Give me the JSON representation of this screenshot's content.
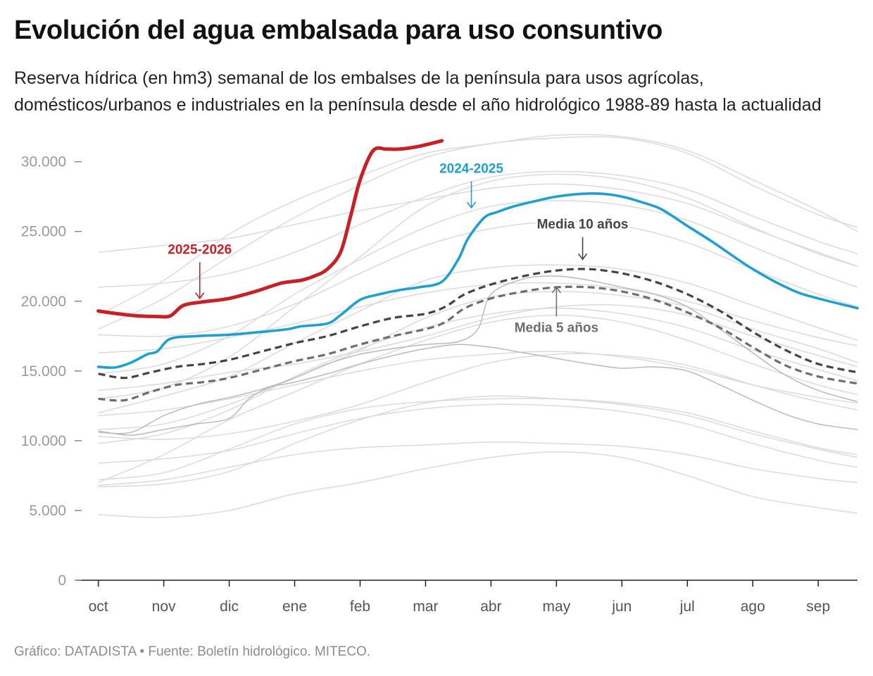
{
  "title": "Evolución del agua embalsada para uso consuntivo",
  "subtitle": "Reserva hídrica (en hm3) semanal de los embalses de la península para usos agrícolas, domésticos/urbanos e industriales en la península desde el año hidrológico 1988-89 hasta la actualidad",
  "footer": "Gráfico: DATADISTA • Fuente: Boletín hidrológico. MITECO.",
  "chart_data": {
    "type": "line",
    "xlabel": "",
    "ylabel": "",
    "ylim": [
      0,
      32000
    ],
    "xlim": [
      -0.05,
      11.6
    ],
    "x_ticks": [
      {
        "pos": 0,
        "label": "oct"
      },
      {
        "pos": 1,
        "label": "nov"
      },
      {
        "pos": 2,
        "label": "dic"
      },
      {
        "pos": 3,
        "label": "ene"
      },
      {
        "pos": 4,
        "label": "feb"
      },
      {
        "pos": 5,
        "label": "mar"
      },
      {
        "pos": 6,
        "label": "abr"
      },
      {
        "pos": 7,
        "label": "may"
      },
      {
        "pos": 8,
        "label": "jun"
      },
      {
        "pos": 9,
        "label": "jul"
      },
      {
        "pos": 10,
        "label": "ago"
      },
      {
        "pos": 11,
        "label": "sep"
      }
    ],
    "y_ticks": [
      {
        "value": 0,
        "label": "0"
      },
      {
        "value": 5000,
        "label": "5.000"
      },
      {
        "value": 10000,
        "label": "10.000"
      },
      {
        "value": 15000,
        "label": "15.000"
      },
      {
        "value": 20000,
        "label": "20.000"
      },
      {
        "value": 25000,
        "label": "25.000"
      },
      {
        "value": 30000,
        "label": "30.000"
      }
    ],
    "grid": false,
    "colors": {
      "highlight_2025_2026": "#c62126",
      "highlight_2024_2025": "#1fa0cf",
      "media_10": "#444444",
      "media_5": "#6e6e6e",
      "background_years": "#dcdcdc",
      "background_years_dark": "#bdbdbd"
    },
    "background_series": [
      {
        "x": [
          0,
          1,
          2,
          3,
          4,
          5,
          6,
          7,
          8,
          9,
          10,
          11,
          11.6
        ],
        "y": [
          4700,
          4500,
          5000,
          6200,
          7000,
          8000,
          8800,
          9200,
          8800,
          7500,
          6000,
          5200,
          4800
        ]
      },
      {
        "x": [
          0,
          1,
          2,
          3,
          4,
          5,
          6,
          7,
          8,
          9,
          10,
          11,
          11.6
        ],
        "y": [
          6700,
          6900,
          7800,
          9800,
          11500,
          12700,
          13200,
          13000,
          12600,
          11800,
          10500,
          9400,
          8800
        ]
      },
      {
        "x": [
          0,
          1,
          2,
          3,
          4,
          5,
          6,
          7,
          8,
          9,
          10,
          11,
          11.6
        ],
        "y": [
          7000,
          9000,
          11500,
          13500,
          15500,
          17200,
          18500,
          19000,
          18500,
          17200,
          15500,
          14000,
          13300
        ]
      },
      {
        "x": [
          0,
          1,
          2,
          3,
          4,
          5,
          6,
          7,
          8,
          9,
          10,
          11,
          11.6
        ],
        "y": [
          6800,
          7200,
          8100,
          9000,
          9500,
          9700,
          9900,
          9800,
          9600,
          9000,
          8000,
          7300,
          7000
        ]
      },
      {
        "x": [
          0,
          1,
          2,
          3,
          4,
          5,
          6,
          7,
          8,
          9,
          10,
          11,
          11.6
        ],
        "y": [
          10800,
          11200,
          12600,
          14500,
          16500,
          18800,
          20300,
          20700,
          20400,
          19600,
          18000,
          16600,
          15600
        ]
      },
      {
        "x": [
          0,
          1,
          2,
          3,
          4,
          5,
          6,
          7,
          8,
          9,
          10,
          11,
          11.6
        ],
        "y": [
          12000,
          13200,
          14600,
          17000,
          19300,
          21500,
          22400,
          22600,
          22300,
          21300,
          19700,
          18100,
          17200
        ]
      },
      {
        "x": [
          0,
          1,
          2,
          3,
          4,
          5,
          6,
          7,
          8,
          9,
          10,
          11,
          11.6
        ],
        "y": [
          13000,
          13800,
          16000,
          19600,
          23200,
          26800,
          28600,
          29100,
          28700,
          27400,
          25300,
          23400,
          22500
        ]
      },
      {
        "x": [
          0,
          1,
          2,
          3,
          4,
          5,
          6,
          7,
          8,
          9,
          10,
          11,
          11.6
        ],
        "y": [
          18000,
          20200,
          23200,
          26000,
          28300,
          30300,
          31300,
          31700,
          31700,
          30600,
          28300,
          26200,
          25300
        ]
      },
      {
        "x": [
          0,
          1,
          2,
          3,
          4,
          5,
          6,
          7,
          8,
          9,
          10,
          11,
          11.6
        ],
        "y": [
          19000,
          21500,
          24800,
          27200,
          29000,
          30600,
          31300,
          31900,
          31800,
          30800,
          28700,
          26500,
          25000
        ]
      },
      {
        "x": [
          0,
          1,
          2,
          3,
          4,
          5,
          6,
          7,
          8,
          9,
          10,
          11,
          11.6
        ],
        "y": [
          16300,
          16600,
          17400,
          18400,
          19600,
          20600,
          21200,
          21300,
          20900,
          20000,
          18600,
          17400,
          16800
        ]
      },
      {
        "x": [
          0,
          1,
          2,
          3,
          4,
          5,
          6,
          7,
          8,
          9,
          10,
          11,
          11.6
        ],
        "y": [
          11800,
          12200,
          13000,
          14000,
          15000,
          15800,
          16200,
          16400,
          16000,
          15200,
          14000,
          13100,
          12700
        ]
      },
      {
        "x": [
          0,
          1,
          2,
          3,
          4,
          5,
          6,
          7,
          8,
          9,
          10,
          11,
          11.6
        ],
        "y": [
          7200,
          7700,
          9400,
          11200,
          12300,
          12800,
          13000,
          13000,
          12700,
          12000,
          10700,
          9500,
          9000
        ]
      },
      {
        "x": [
          0,
          1,
          2,
          3,
          4,
          5,
          6,
          7,
          8,
          9,
          10,
          11,
          11.6
        ],
        "y": [
          23500,
          24000,
          24500,
          25500,
          26500,
          27300,
          28100,
          28400,
          28000,
          27000,
          25200,
          23500,
          22500
        ]
      },
      {
        "x": [
          0,
          1,
          2,
          3,
          4,
          5,
          6,
          7,
          8,
          9,
          10,
          11,
          11.6
        ],
        "y": [
          14800,
          15500,
          17500,
          20500,
          23000,
          25300,
          26800,
          27200,
          26900,
          25800,
          23900,
          22000,
          21000
        ]
      },
      {
        "x": [
          0,
          1,
          2,
          3,
          4,
          5,
          6,
          7,
          8,
          9,
          10,
          11,
          11.6
        ],
        "y": [
          9800,
          10500,
          12200,
          14600,
          16600,
          18100,
          19100,
          19500,
          19100,
          18100,
          16500,
          15100,
          14300
        ]
      },
      {
        "x": [
          0,
          1,
          2,
          3,
          4,
          5,
          6,
          7,
          8,
          9,
          10,
          11,
          11.6
        ],
        "y": [
          17600,
          17500,
          18200,
          19800,
          22000,
          24000,
          25200,
          25700,
          25400,
          24200,
          22300,
          20500,
          19600
        ]
      },
      {
        "x": [
          0,
          1,
          2,
          3,
          4,
          5,
          6,
          7,
          8,
          9,
          10,
          11,
          11.6
        ],
        "y": [
          21000,
          21300,
          22000,
          23500,
          25500,
          27500,
          28900,
          29300,
          29000,
          28000,
          26100,
          24300,
          23400
        ]
      },
      {
        "x": [
          0,
          1,
          2,
          3,
          4,
          5,
          6,
          7,
          8,
          9,
          10,
          11,
          11.6
        ],
        "y": [
          13600,
          14100,
          14900,
          15500,
          16400,
          17500,
          18800,
          19600,
          19700,
          19000,
          17500,
          16100,
          15300
        ]
      },
      {
        "x": [
          0,
          1,
          2,
          3,
          4,
          5,
          6,
          7,
          8,
          9,
          10,
          11,
          11.6
        ],
        "y": [
          8400,
          8700,
          9300,
          10500,
          11600,
          12300,
          12600,
          12500,
          12100,
          11200,
          9800,
          8600,
          8100
        ]
      },
      {
        "x": [
          0,
          1,
          2,
          3,
          4,
          5,
          6,
          7,
          8,
          9,
          10,
          11,
          11.6
        ],
        "y": [
          10300,
          10100,
          10500,
          11400,
          12600,
          14200,
          15600,
          16200,
          16100,
          15400,
          14000,
          12800,
          12200
        ]
      }
    ],
    "dark_background_series": [
      {
        "x": [
          0,
          0.5,
          1,
          1.5,
          2,
          2.3,
          2.6,
          3,
          3.5,
          4,
          4.5,
          5,
          5.5,
          6,
          6.5,
          7,
          7.5,
          8,
          8.5,
          9,
          9.5,
          10,
          10.5,
          11,
          11.6
        ],
        "y": [
          10700,
          10400,
          10800,
          11200,
          11600,
          13000,
          13800,
          14200,
          14800,
          15500,
          16100,
          16600,
          16900,
          16700,
          16300,
          15900,
          15500,
          15200,
          15300,
          15000,
          14000,
          12900,
          11900,
          11200,
          10800
        ]
      },
      {
        "x": [
          0,
          0.5,
          1,
          1.5,
          2,
          2.5,
          3,
          3.5,
          4,
          4.5,
          5,
          5.5,
          5.8,
          6,
          6.5,
          7,
          7.5,
          8,
          8.5,
          9,
          9.5,
          10,
          10.5,
          11,
          11.6
        ],
        "y": [
          10600,
          10600,
          11800,
          12600,
          13100,
          13700,
          14500,
          15500,
          16200,
          16600,
          16900,
          17100,
          18000,
          20500,
          21600,
          21800,
          21500,
          21000,
          20500,
          19600,
          18000,
          16300,
          14700,
          13600,
          12800
        ]
      }
    ],
    "series": [
      {
        "name": "2025-2026",
        "color": "#c62126",
        "x": [
          0,
          0.3,
          0.6,
          0.9,
          1.1,
          1.3,
          1.6,
          2,
          2.4,
          2.8,
          3.1,
          3.3,
          3.5,
          3.7,
          3.85,
          4,
          4.2,
          4.4,
          4.6,
          4.9,
          5.25
        ],
        "y": [
          19300,
          19100,
          18950,
          18900,
          18950,
          19700,
          19950,
          20200,
          20700,
          21300,
          21500,
          21800,
          22300,
          23500,
          26000,
          28700,
          30800,
          30900,
          30900,
          31100,
          31500
        ]
      },
      {
        "name": "2024-2025",
        "color": "#1fa0cf",
        "x": [
          0,
          0.25,
          0.5,
          0.75,
          0.9,
          1.1,
          1.5,
          2,
          2.5,
          2.9,
          3.1,
          3.5,
          3.7,
          4,
          4.3,
          4.6,
          4.9,
          5.25,
          5.5,
          5.65,
          5.9,
          6.1,
          6.35,
          6.7,
          7,
          7.4,
          7.7,
          8,
          8.3,
          8.6,
          9,
          9.4,
          10,
          10.6,
          11,
          11.6
        ],
        "y": [
          15300,
          15250,
          15600,
          16200,
          16400,
          17300,
          17500,
          17600,
          17800,
          18000,
          18200,
          18400,
          19000,
          20100,
          20500,
          20800,
          21000,
          21400,
          23000,
          24500,
          26000,
          26400,
          26800,
          27200,
          27500,
          27700,
          27700,
          27500,
          27100,
          26600,
          25400,
          24200,
          22300,
          20800,
          20200,
          19500
        ]
      }
    ],
    "references": [
      {
        "name": "Media 10 años",
        "label": "Media 10 años",
        "color": "#444444",
        "x": [
          0,
          0.4,
          0.8,
          1.2,
          1.6,
          2,
          2.5,
          3,
          3.5,
          4,
          4.5,
          5,
          5.3,
          5.6,
          6,
          6.5,
          7,
          7.5,
          8,
          8.5,
          9,
          9.5,
          10,
          10.5,
          11,
          11.6
        ],
        "y": [
          14800,
          14500,
          14900,
          15300,
          15500,
          15800,
          16400,
          17000,
          17500,
          18200,
          18800,
          19100,
          19600,
          20500,
          21200,
          21800,
          22200,
          22300,
          22000,
          21400,
          20500,
          19300,
          17800,
          16500,
          15500,
          14900
        ]
      },
      {
        "name": "Media 5 años",
        "label": "Media 5 años",
        "color": "#6e6e6e",
        "x": [
          0,
          0.4,
          0.8,
          1.2,
          1.6,
          2,
          2.5,
          3,
          3.5,
          4,
          4.5,
          5,
          5.3,
          5.6,
          6,
          6.5,
          7,
          7.5,
          8,
          8.5,
          9,
          9.5,
          10,
          10.5,
          11,
          11.6
        ],
        "y": [
          13000,
          12900,
          13500,
          14000,
          14200,
          14500,
          15100,
          15700,
          16200,
          16900,
          17500,
          18000,
          18500,
          19500,
          20200,
          20700,
          21000,
          21000,
          20700,
          20100,
          19200,
          18100,
          16700,
          15400,
          14600,
          14100
        ]
      }
    ],
    "annotations": [
      {
        "text": "2025-2026",
        "series": "2025-2026",
        "color": "#c62126",
        "arrow_x": 1.55,
        "arrow_y": 20200,
        "label_y": 23400,
        "direction": "down"
      },
      {
        "text": "2024-2025",
        "series": "2024-2025",
        "color": "#1fa0cf",
        "arrow_x": 5.7,
        "arrow_y": 26700,
        "label_y": 29200,
        "direction": "down"
      },
      {
        "text": "Media 10 años",
        "series": "Media 10 años",
        "color": "#444444",
        "arrow_x": 7.4,
        "arrow_y": 23000,
        "label_y": 25200,
        "direction": "down"
      },
      {
        "text": "Media 5 años",
        "series": "Media 5 años",
        "color": "#6e6e6e",
        "arrow_x": 7.0,
        "arrow_y": 21000,
        "label_y": 17800,
        "direction": "up"
      }
    ]
  }
}
